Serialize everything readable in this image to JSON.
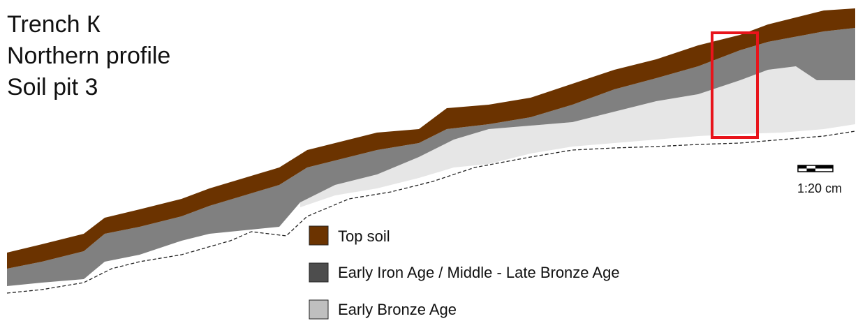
{
  "title_lines": [
    "Trench К",
    "Northern profile",
    "Soil pit 3"
  ],
  "scale": {
    "label": "1:20 cm"
  },
  "legend": [
    {
      "label": "Top soil"
    },
    {
      "label": "Early Iron Age / Middle - Late Bronze Age"
    },
    {
      "label": "Early Bronze Age"
    }
  ]
}
